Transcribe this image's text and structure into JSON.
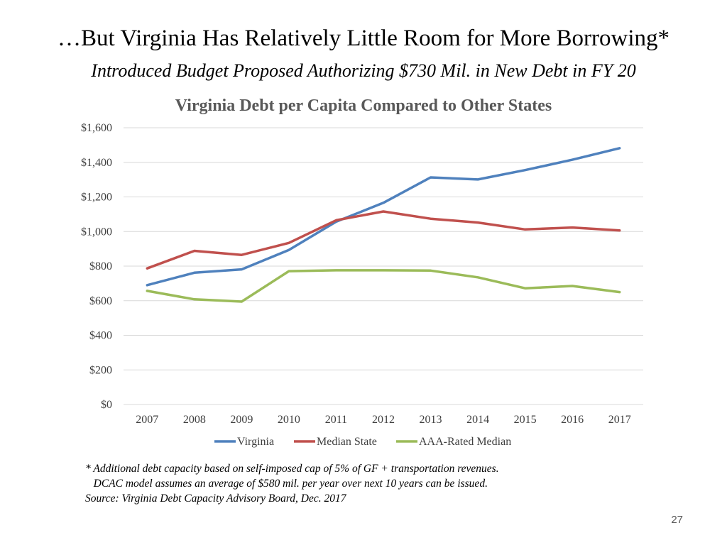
{
  "slide": {
    "title": "…But Virginia Has Relatively Little Room for More Borrowing*",
    "subtitle": "Introduced Budget Proposed Authorizing $730 Mil. in New Debt in FY 20",
    "footnote_lines": [
      "* Additional debt capacity based on self-imposed cap of 5% of GF + transportation revenues.",
      "   DCAC model assumes an average of $580 mil. per year over next 10 years can be issued.",
      "Source: Virginia Debt Capacity Advisory Board, Dec. 2017"
    ],
    "page_number": "27"
  },
  "chart_data": {
    "type": "line",
    "title": "Virginia Debt per Capita Compared to Other States",
    "xlabel": "",
    "ylabel": "",
    "categories": [
      "2007",
      "2008",
      "2009",
      "2010",
      "2011",
      "2012",
      "2013",
      "2014",
      "2015",
      "2016",
      "2017"
    ],
    "ylim": [
      0,
      1600
    ],
    "yticks": [
      0,
      200,
      400,
      600,
      800,
      1000,
      1200,
      1400,
      1600
    ],
    "ytick_labels": [
      "$0",
      "$200",
      "$400",
      "$600",
      "$800",
      "$1,000",
      "$1,200",
      "$1,400",
      "$1,600"
    ],
    "grid": true,
    "legend_position": "bottom",
    "series": [
      {
        "name": "Virginia",
        "color": "#4f81bd",
        "values": [
          690,
          762,
          781,
          893,
          1057,
          1166,
          1313,
          1301,
          1355,
          1415,
          1482
        ]
      },
      {
        "name": "Median State",
        "color": "#c0504d",
        "values": [
          787,
          888,
          865,
          934,
          1065,
          1116,
          1074,
          1052,
          1012,
          1023,
          1006
        ]
      },
      {
        "name": "AAA-Rated Median",
        "color": "#9bbb59",
        "values": [
          657,
          608,
          595,
          771,
          776,
          776,
          774,
          735,
          672,
          685,
          650
        ]
      }
    ]
  }
}
